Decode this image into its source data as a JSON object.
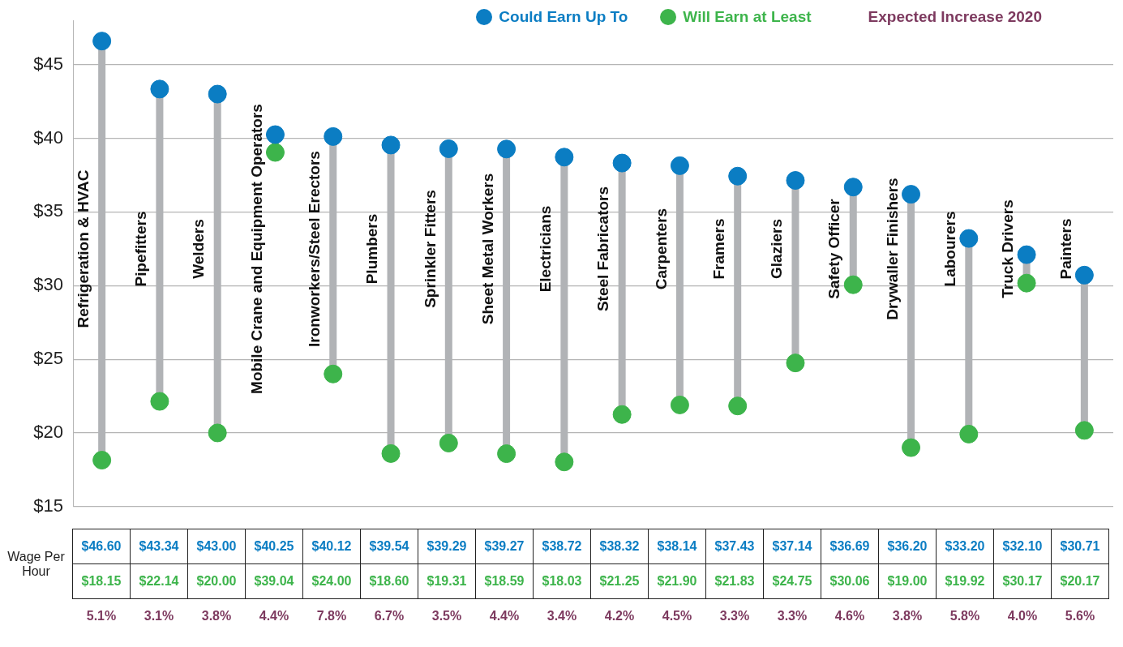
{
  "chart_data": {
    "type": "scatter",
    "categories": [
      "Refrigeration & HVAC",
      "Pipefitters",
      "Welders",
      "Mobile Crane and Equipment Operators",
      "Ironworkers/Steel Erectors",
      "Plumbers",
      "Sprinkler Fitters",
      "Sheet Metal Workers",
      "Electricians",
      "Steel Fabricators",
      "Carpenters",
      "Framers",
      "Glaziers",
      "Safety Officer",
      "Drywaller Finishers",
      "Labourers",
      "Truck Drivers",
      "Painters"
    ],
    "series": [
      {
        "name": "Could Earn Up To",
        "color": "#0b7dc3",
        "values": [
          46.6,
          43.34,
          43.0,
          40.25,
          40.12,
          39.54,
          39.29,
          39.27,
          38.72,
          38.32,
          38.14,
          37.43,
          37.14,
          36.69,
          36.2,
          33.2,
          32.1,
          30.71
        ],
        "value_labels": [
          "$46.60",
          "$43.34",
          "$43.00",
          "$40.25",
          "$40.12",
          "$39.54",
          "$39.29",
          "$39.27",
          "$38.72",
          "$38.32",
          "$38.14",
          "$37.43",
          "$37.14",
          "$36.69",
          "$36.20",
          "$33.20",
          "$32.10",
          "$30.71"
        ]
      },
      {
        "name": "Will Earn at Least",
        "color": "#3db44b",
        "values": [
          18.15,
          22.14,
          20.0,
          39.04,
          24.0,
          18.6,
          19.31,
          18.59,
          18.03,
          21.25,
          21.9,
          21.83,
          24.75,
          30.06,
          19.0,
          19.92,
          30.17,
          20.17
        ],
        "value_labels": [
          "$18.15",
          "$22.14",
          "$20.00",
          "$39.04",
          "$24.00",
          "$18.60",
          "$19.31",
          "$18.59",
          "$18.03",
          "$21.25",
          "$21.90",
          "$21.83",
          "$24.75",
          "$30.06",
          "$19.00",
          "$19.92",
          "$30.17",
          "$20.17"
        ]
      }
    ],
    "ylim": [
      15,
      48
    ],
    "yticks": [
      {
        "value": 15,
        "label": "$15"
      },
      {
        "value": 20,
        "label": "$20"
      },
      {
        "value": 25,
        "label": "$25"
      },
      {
        "value": 30,
        "label": "$30"
      },
      {
        "value": 35,
        "label": "$35"
      },
      {
        "value": 40,
        "label": "$40"
      },
      {
        "value": 45,
        "label": "$45"
      }
    ],
    "grid": "y",
    "legend": "top right",
    "marker": "circle",
    "annotations": [
      "Expected Increase 2020",
      "Wage Per Hour",
      "5.1%",
      "3.1%",
      "3.8%",
      "4.4%",
      "7.8%",
      "6.7%",
      "3.5%",
      "4.4%",
      "3.4%",
      "4.2%",
      "4.5%",
      "3.3%",
      "3.3%",
      "4.6%",
      "3.8%",
      "5.8%",
      "4.0%",
      "5.6%"
    ]
  }
}
